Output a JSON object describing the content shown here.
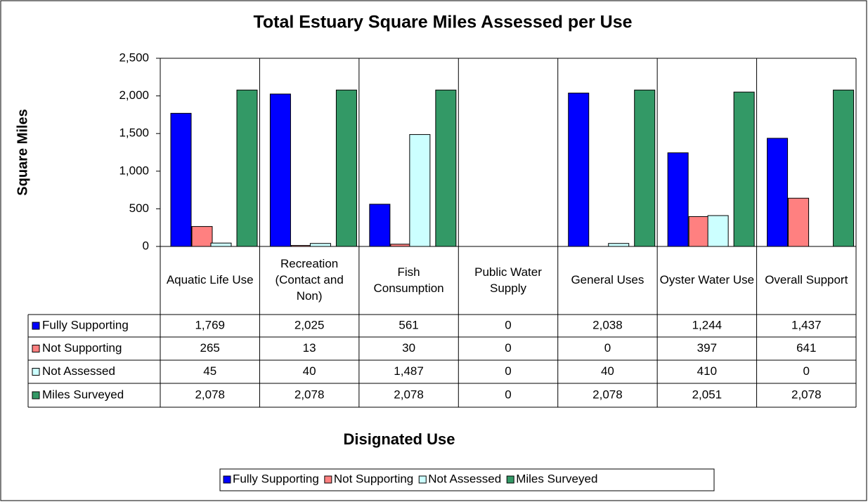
{
  "chart_data": {
    "type": "bar",
    "title": "Total Estuary Square Miles Assessed per Use",
    "y_label": "Square Miles",
    "x_label": "Disignated Use",
    "categories": [
      "Aquatic Life Use",
      "Recreation (Contact and Non)",
      "Fish Consumption",
      "Public Water Supply",
      "General Uses",
      "Oyster Water Use",
      "Overall Support"
    ],
    "series": [
      {
        "name": "Fully Supporting",
        "color": "#0000ff",
        "values": [
          1769,
          2025,
          561,
          0,
          2038,
          1244,
          1437
        ],
        "value_labels": [
          "1,769",
          "2,025",
          "561",
          "0",
          "2,038",
          "1,244",
          "1,437"
        ]
      },
      {
        "name": "Not Supporting",
        "color": "#ff8080",
        "values": [
          265,
          13,
          30,
          0,
          0,
          397,
          641
        ],
        "value_labels": [
          "265",
          "13",
          "30",
          "0",
          "0",
          "397",
          "641"
        ]
      },
      {
        "name": "Not Assessed",
        "color": "#ccffff",
        "values": [
          45,
          40,
          1487,
          0,
          40,
          410,
          0
        ],
        "value_labels": [
          "45",
          "40",
          "1,487",
          "0",
          "40",
          "410",
          "0"
        ]
      },
      {
        "name": "Miles Surveyed",
        "color": "#339966",
        "values": [
          2078,
          2078,
          2078,
          0,
          2078,
          2051,
          2078
        ],
        "value_labels": [
          "2,078",
          "2,078",
          "2,078",
          "0",
          "2,078",
          "2,051",
          "2,078"
        ]
      }
    ],
    "ylim": [
      0,
      2500
    ],
    "yticks": [
      0,
      500,
      {
        "value": 1000,
        "label": "1,000"
      },
      {
        "value": 1500,
        "label": "1,500"
      },
      {
        "value": 2000,
        "label": "2,000"
      },
      {
        "value": 2500,
        "label": "2,500"
      }
    ],
    "grid": false,
    "legend": "bottom"
  }
}
